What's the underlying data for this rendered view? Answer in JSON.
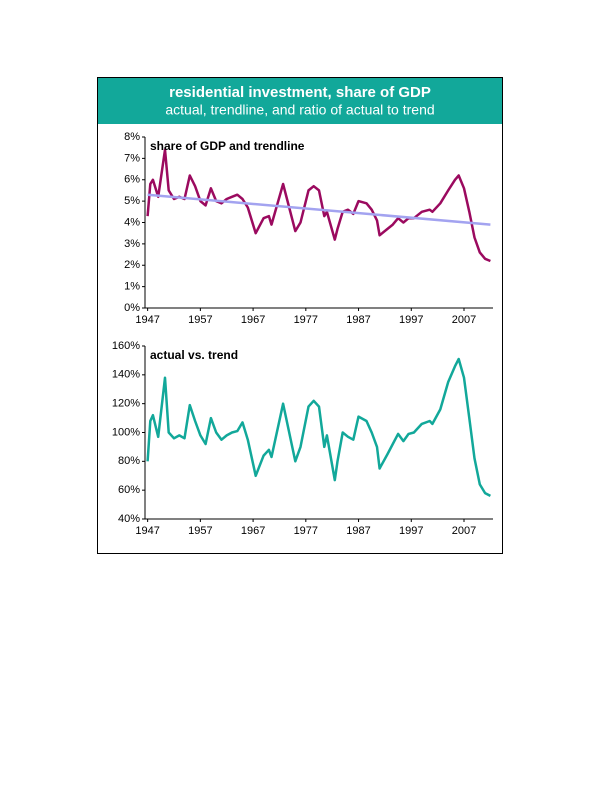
{
  "header": {
    "title": "residential investment, share of GDP",
    "subtitle": "actual, trendline, and ratio of actual to trend"
  },
  "chart_data": [
    {
      "type": "line",
      "title": "share of GDP and trendline",
      "xlim": [
        1946.5,
        2012.5
      ],
      "xticks": [
        1947,
        1957,
        1967,
        1977,
        1987,
        1997,
        2007
      ],
      "ylim": [
        0,
        8
      ],
      "yticks": [
        {
          "value": 0,
          "label": "0%"
        },
        {
          "value": 1,
          "label": "1%"
        },
        {
          "value": 2,
          "label": "2%"
        },
        {
          "value": 3,
          "label": "3%"
        },
        {
          "value": 4,
          "label": "4%"
        },
        {
          "value": 5,
          "label": "5%"
        },
        {
          "value": 6,
          "label": "6%"
        },
        {
          "value": 7,
          "label": "7%"
        },
        {
          "value": 8,
          "label": "8%"
        }
      ],
      "series": [
        {
          "color": "#9b0a5f",
          "x": [
            1947,
            1947.5,
            1948,
            1949,
            1950.3,
            1951,
            1952,
            1953,
            1954,
            1955,
            1956,
            1957,
            1958,
            1959,
            1960,
            1961,
            1962,
            1963,
            1964,
            1965,
            1966,
            1967.5,
            1969,
            1970,
            1970.5,
            1972.7,
            1975,
            1976,
            1977.5,
            1978.5,
            1979.5,
            1980.5,
            1981,
            1982.5,
            1983,
            1984,
            1985,
            1986,
            1987,
            1988.5,
            1989.5,
            1990.5,
            1991,
            1992.5,
            1993.5,
            1994.5,
            1995.5,
            1996.5,
            1997.5,
            1999,
            2000.5,
            2001,
            2002.5,
            2004,
            2005.3,
            2006,
            2007,
            2008,
            2009,
            2010,
            2011,
            2012
          ],
          "values": [
            4.3,
            5.8,
            6.0,
            5.2,
            7.4,
            5.5,
            5.1,
            5.2,
            5.1,
            6.2,
            5.7,
            5.0,
            4.8,
            5.6,
            5.0,
            4.9,
            5.1,
            5.2,
            5.3,
            5.1,
            4.7,
            3.5,
            4.2,
            4.3,
            3.9,
            5.8,
            3.6,
            4.0,
            5.5,
            5.7,
            5.5,
            4.3,
            4.5,
            3.2,
            3.7,
            4.5,
            4.6,
            4.4,
            5.0,
            4.9,
            4.6,
            4.1,
            3.4,
            3.7,
            3.9,
            4.2,
            4.0,
            4.2,
            4.2,
            4.5,
            4.6,
            4.5,
            4.9,
            5.5,
            6.0,
            6.2,
            5.6,
            4.5,
            3.3,
            2.6,
            2.3,
            2.2
          ]
        },
        {
          "color": "#a3a3f0",
          "x": [
            1947,
            2012
          ],
          "values": [
            5.3,
            3.9
          ]
        }
      ]
    },
    {
      "type": "line",
      "title": "actual vs. trend",
      "xlim": [
        1946.5,
        2012.5
      ],
      "xticks": [
        1947,
        1957,
        1967,
        1977,
        1987,
        1997,
        2007
      ],
      "ylim": [
        40,
        160
      ],
      "yticks": [
        {
          "value": 40,
          "label": "40%"
        },
        {
          "value": 60,
          "label": "60%"
        },
        {
          "value": 80,
          "label": "80%"
        },
        {
          "value": 100,
          "label": "100%"
        },
        {
          "value": 120,
          "label": "120%"
        },
        {
          "value": 140,
          "label": "140%"
        },
        {
          "value": 160,
          "label": "160%"
        }
      ],
      "series": [
        {
          "color": "#12a89a",
          "x": [
            1947,
            1947.5,
            1948,
            1949,
            1950.3,
            1951,
            1952,
            1953,
            1954,
            1955,
            1956,
            1957,
            1958,
            1959,
            1960,
            1961,
            1962,
            1963,
            1964,
            1965,
            1966,
            1967.5,
            1969,
            1970,
            1970.5,
            1972.7,
            1975,
            1976,
            1977.5,
            1978.5,
            1979.5,
            1980.5,
            1981,
            1982.5,
            1983,
            1984,
            1985,
            1986,
            1987,
            1988.5,
            1989.5,
            1990.5,
            1991,
            1992.5,
            1993.5,
            1994.5,
            1995.5,
            1996.5,
            1997.5,
            1999,
            2000.5,
            2001,
            2002.5,
            2004,
            2005.3,
            2006,
            2007,
            2008,
            2009,
            2010,
            2011,
            2012
          ],
          "values": [
            80,
            108,
            112,
            97,
            138,
            100,
            96,
            98,
            96,
            119,
            108,
            98,
            92,
            110,
            100,
            95,
            98,
            100,
            101,
            107,
            95,
            70,
            84,
            88,
            83,
            120,
            80,
            90,
            118,
            122,
            118,
            90,
            98,
            67,
            80,
            100,
            97,
            95,
            111,
            108,
            100,
            90,
            75,
            85,
            92,
            99,
            94,
            99,
            100,
            106,
            108,
            106,
            116,
            135,
            146,
            151,
            138,
            110,
            82,
            64,
            58,
            56
          ]
        }
      ]
    }
  ]
}
